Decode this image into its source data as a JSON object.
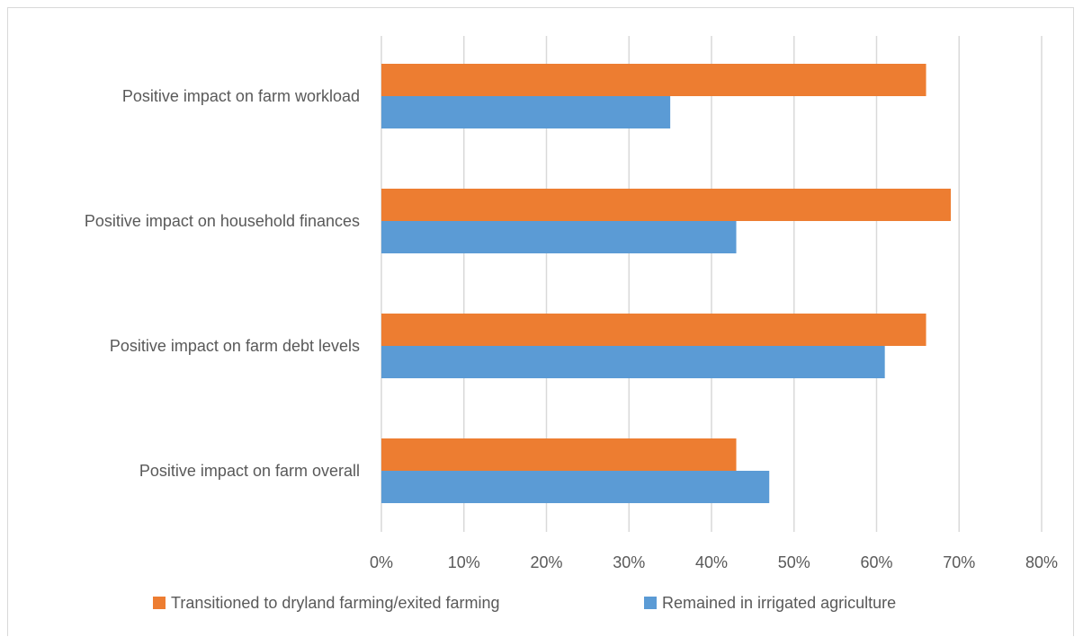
{
  "chart_data": {
    "type": "bar",
    "orientation": "horizontal",
    "title": "",
    "xlabel": "",
    "ylabel": "",
    "categories": [
      "Positive impact on farm workload",
      "Positive impact on household finances",
      "Positive impact on farm debt levels",
      "Positive impact on farm overall"
    ],
    "series": [
      {
        "name": "Transitioned to dryland farming/exited farming",
        "color": "#ED7D31",
        "values": [
          66,
          69,
          66,
          43
        ]
      },
      {
        "name": "Remained in irrigated agriculture",
        "color": "#5B9BD5",
        "values": [
          35,
          43,
          61,
          47
        ]
      }
    ],
    "xlim": [
      0,
      80
    ],
    "tick_labels": [
      "0%",
      "10%",
      "20%",
      "30%",
      "40%",
      "50%",
      "60%",
      "70%",
      "80%"
    ],
    "grid": true,
    "legend_position": "bottom"
  }
}
